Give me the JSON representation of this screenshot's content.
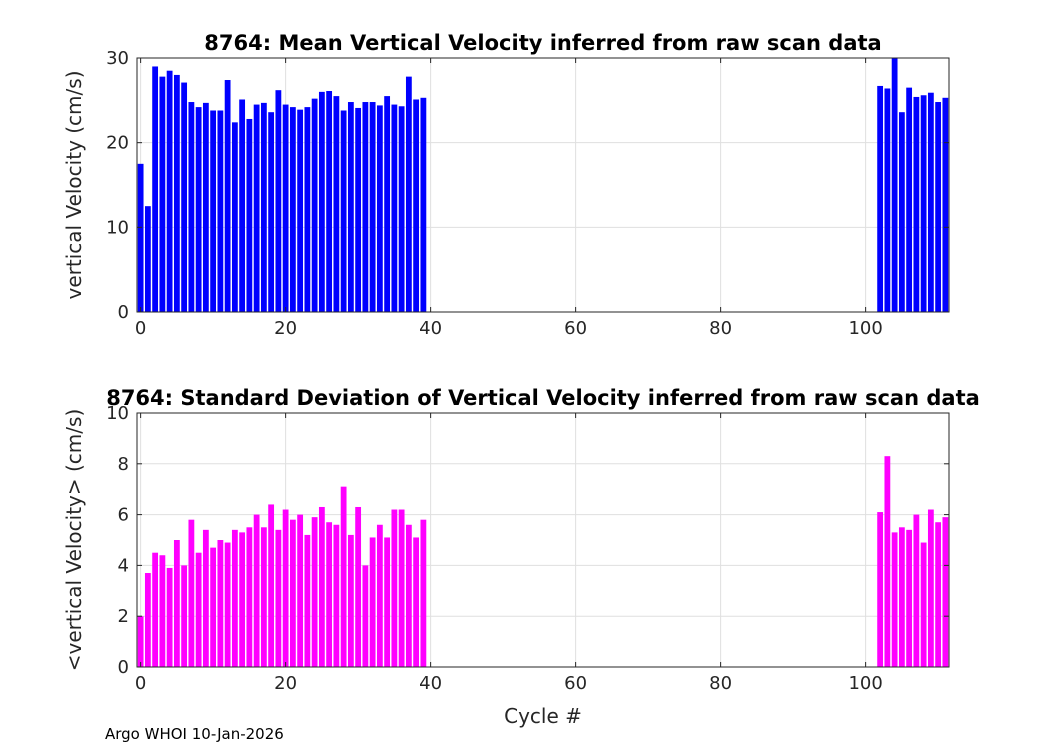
{
  "footer": "Argo WHOI 10-Jan-2026",
  "chart_data": [
    {
      "type": "bar",
      "title": "8764: Mean Vertical Velocity inferred from raw scan data",
      "xlabel": "",
      "ylabel": "vertical Velocity (cm/s)",
      "xlim": [
        -0.5,
        111.5
      ],
      "ylim": [
        0,
        30
      ],
      "xticks": [
        0,
        20,
        40,
        60,
        80,
        100
      ],
      "yticks": [
        0,
        10,
        20,
        30
      ],
      "grid": true,
      "color": "#0000ff",
      "x": [
        0,
        1,
        2,
        3,
        4,
        5,
        6,
        7,
        8,
        9,
        10,
        11,
        12,
        13,
        14,
        15,
        16,
        17,
        18,
        19,
        20,
        21,
        22,
        23,
        24,
        25,
        26,
        27,
        28,
        29,
        30,
        31,
        32,
        33,
        34,
        35,
        36,
        37,
        38,
        39,
        102,
        103,
        104,
        105,
        106,
        107,
        108,
        109,
        110,
        111
      ],
      "values": [
        17.5,
        12.5,
        29.0,
        27.8,
        28.5,
        28.0,
        27.1,
        24.8,
        24.2,
        24.7,
        23.8,
        23.8,
        27.4,
        22.4,
        25.1,
        22.8,
        24.5,
        24.7,
        23.6,
        26.2,
        24.5,
        24.2,
        23.9,
        24.2,
        25.2,
        26.0,
        26.1,
        25.5,
        23.8,
        24.8,
        24.1,
        24.8,
        24.8,
        24.4,
        25.5,
        24.5,
        24.3,
        27.8,
        25.1,
        25.3,
        26.7,
        26.4,
        30.0,
        23.6,
        26.5,
        25.4,
        25.6,
        25.9,
        24.8,
        25.3
      ]
    },
    {
      "type": "bar",
      "title": "8764: Standard Deviation of Vertical Velocity inferred from raw scan data",
      "xlabel": "Cycle #",
      "ylabel": "<vertical Velocity> (cm/s)",
      "xlim": [
        -0.5,
        111.5
      ],
      "ylim": [
        0,
        10
      ],
      "xticks": [
        0,
        20,
        40,
        60,
        80,
        100
      ],
      "yticks": [
        0,
        2,
        4,
        6,
        8,
        10
      ],
      "grid": true,
      "color": "#ff00ff",
      "x": [
        0,
        1,
        2,
        3,
        4,
        5,
        6,
        7,
        8,
        9,
        10,
        11,
        12,
        13,
        14,
        15,
        16,
        17,
        18,
        19,
        20,
        21,
        22,
        23,
        24,
        25,
        26,
        27,
        28,
        29,
        30,
        31,
        32,
        33,
        34,
        35,
        36,
        37,
        38,
        39,
        102,
        103,
        104,
        105,
        106,
        107,
        108,
        109,
        110,
        111
      ],
      "values": [
        2.0,
        3.7,
        4.5,
        4.4,
        3.9,
        5.0,
        4.0,
        5.8,
        4.5,
        5.4,
        4.7,
        5.0,
        4.9,
        5.4,
        5.3,
        5.5,
        6.0,
        5.5,
        6.4,
        5.4,
        6.2,
        5.8,
        6.0,
        5.2,
        5.9,
        6.3,
        5.7,
        5.6,
        7.1,
        5.2,
        6.3,
        4.0,
        5.1,
        5.6,
        5.1,
        6.2,
        6.2,
        5.6,
        5.1,
        5.8,
        6.1,
        8.3,
        5.3,
        5.5,
        5.4,
        6.0,
        4.9,
        6.2,
        5.7,
        5.9
      ]
    }
  ]
}
